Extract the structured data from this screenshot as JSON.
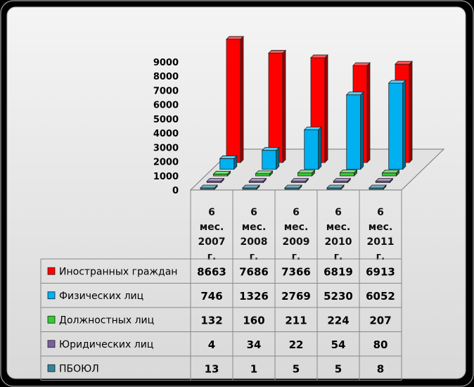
{
  "chart_data": {
    "type": "bar",
    "title": "",
    "xlabel": "",
    "ylabel": "",
    "ylim": [
      0,
      9000
    ],
    "yticks": [
      0,
      1000,
      2000,
      3000,
      4000,
      5000,
      6000,
      7000,
      8000,
      9000
    ],
    "categories": [
      [
        "6",
        "мес.",
        "2007",
        "г."
      ],
      [
        "6",
        "мес.",
        "2008",
        "г."
      ],
      [
        "6",
        "мес.",
        "2009",
        "г."
      ],
      [
        "6",
        "мес.",
        "2010",
        "г."
      ],
      [
        "6",
        "мес.",
        "2011",
        "г."
      ]
    ],
    "series": [
      {
        "name": "Иностранных граждан",
        "color": "#ff0000",
        "values": [
          8663,
          7686,
          7366,
          6819,
          6913
        ]
      },
      {
        "name": "Физических лиц",
        "color": "#00b0f0",
        "values": [
          746,
          1326,
          2769,
          5230,
          6052
        ]
      },
      {
        "name": "Должностных лиц",
        "color": "#33cc33",
        "values": [
          132,
          160,
          211,
          224,
          207
        ]
      },
      {
        "name": "Юридических лиц",
        "color": "#7b5fa0",
        "values": [
          4,
          34,
          22,
          54,
          80
        ]
      },
      {
        "name": "ПБОЮЛ",
        "color": "#31849b",
        "values": [
          13,
          1,
          5,
          5,
          8
        ]
      }
    ],
    "grid": false,
    "legend": "table"
  }
}
